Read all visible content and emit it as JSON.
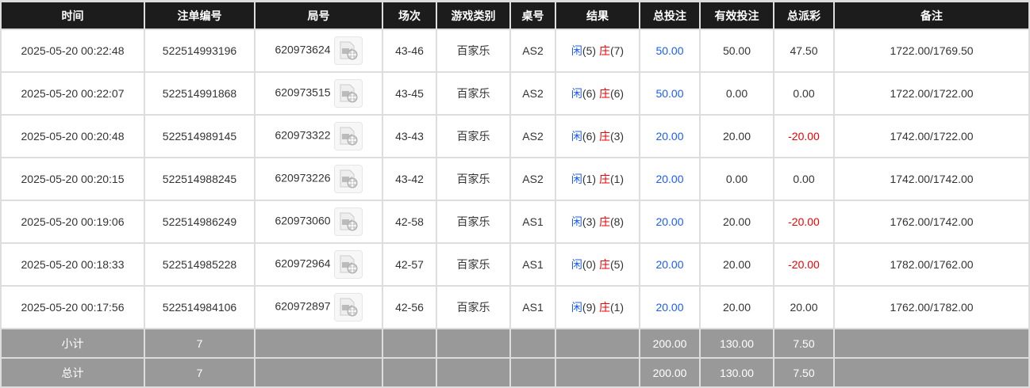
{
  "headers": [
    "时间",
    "注单编号",
    "局号",
    "场次",
    "游戏类别",
    "桌号",
    "结果",
    "总投注",
    "有效投注",
    "总派彩",
    "备注"
  ],
  "rows": [
    {
      "time": "2025-05-20 00:22:48",
      "bet_id": "522514993196",
      "round": "620973624",
      "shoe": "43-46",
      "game": "百家乐",
      "table": "AS2",
      "player_label": "闲",
      "player": "(5)",
      "banker_label": "庄",
      "banker": "(7)",
      "total_bet": "50.00",
      "valid_bet": "50.00",
      "payout": "47.50",
      "payout_negative": false,
      "note": "1722.00/1769.50"
    },
    {
      "time": "2025-05-20 00:22:07",
      "bet_id": "522514991868",
      "round": "620973515",
      "shoe": "43-45",
      "game": "百家乐",
      "table": "AS2",
      "player_label": "闲",
      "player": "(6)",
      "banker_label": "庄",
      "banker": "(6)",
      "total_bet": "50.00",
      "valid_bet": "0.00",
      "payout": "0.00",
      "payout_negative": false,
      "note": "1722.00/1722.00"
    },
    {
      "time": "2025-05-20 00:20:48",
      "bet_id": "522514989145",
      "round": "620973322",
      "shoe": "43-43",
      "game": "百家乐",
      "table": "AS2",
      "player_label": "闲",
      "player": "(6)",
      "banker_label": "庄",
      "banker": "(3)",
      "total_bet": "20.00",
      "valid_bet": "20.00",
      "payout": "-20.00",
      "payout_negative": true,
      "note": "1742.00/1722.00"
    },
    {
      "time": "2025-05-20 00:20:15",
      "bet_id": "522514988245",
      "round": "620973226",
      "shoe": "43-42",
      "game": "百家乐",
      "table": "AS2",
      "player_label": "闲",
      "player": "(1)",
      "banker_label": "庄",
      "banker": "(1)",
      "total_bet": "20.00",
      "valid_bet": "0.00",
      "payout": "0.00",
      "payout_negative": false,
      "note": "1742.00/1742.00"
    },
    {
      "time": "2025-05-20 00:19:06",
      "bet_id": "522514986249",
      "round": "620973060",
      "shoe": "42-58",
      "game": "百家乐",
      "table": "AS1",
      "player_label": "闲",
      "player": "(3)",
      "banker_label": "庄",
      "banker": "(8)",
      "total_bet": "20.00",
      "valid_bet": "20.00",
      "payout": "-20.00",
      "payout_negative": true,
      "note": "1762.00/1742.00"
    },
    {
      "time": "2025-05-20 00:18:33",
      "bet_id": "522514985228",
      "round": "620972964",
      "shoe": "42-57",
      "game": "百家乐",
      "table": "AS1",
      "player_label": "闲",
      "player": "(0)",
      "banker_label": "庄",
      "banker": "(5)",
      "total_bet": "20.00",
      "valid_bet": "20.00",
      "payout": "-20.00",
      "payout_negative": true,
      "note": "1782.00/1762.00"
    },
    {
      "time": "2025-05-20 00:17:56",
      "bet_id": "522514984106",
      "round": "620972897",
      "shoe": "42-56",
      "game": "百家乐",
      "table": "AS1",
      "player_label": "闲",
      "player": "(9)",
      "banker_label": "庄",
      "banker": "(1)",
      "total_bet": "20.00",
      "valid_bet": "20.00",
      "payout": "20.00",
      "payout_negative": false,
      "note": "1762.00/1782.00"
    }
  ],
  "subtotal": {
    "label": "小计",
    "count": "7",
    "total_bet": "200.00",
    "valid_bet": "130.00",
    "payout": "7.50"
  },
  "total": {
    "label": "总计",
    "count": "7",
    "total_bet": "200.00",
    "valid_bet": "130.00",
    "payout": "7.50"
  },
  "colors": {
    "header_bg": "#1c1c1c",
    "player": "#1a5cff",
    "banker": "#f00000",
    "summary_bg": "#999999"
  },
  "icons": {
    "replay": "video-replay-icon"
  }
}
